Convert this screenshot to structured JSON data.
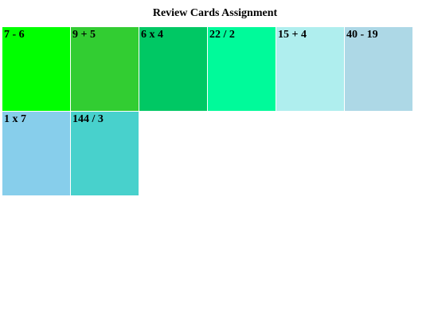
{
  "page": {
    "title": "Review Cards Assignment"
  },
  "cards": [
    {
      "label": "7 - 6",
      "color": "#00ff00"
    },
    {
      "label": "9 + 5",
      "color": "#32cd32"
    },
    {
      "label": "6 x 4",
      "color": "#00c864"
    },
    {
      "label": "22 / 2",
      "color": "#00fa9a"
    },
    {
      "label": "15 + 4",
      "color": "#afeeee"
    },
    {
      "label": "40 - 19",
      "color": "#add8e6"
    },
    {
      "label": "1 x 7",
      "color": "#87ceeb"
    },
    {
      "label": "144 / 3",
      "color": "#48d1cc"
    }
  ]
}
